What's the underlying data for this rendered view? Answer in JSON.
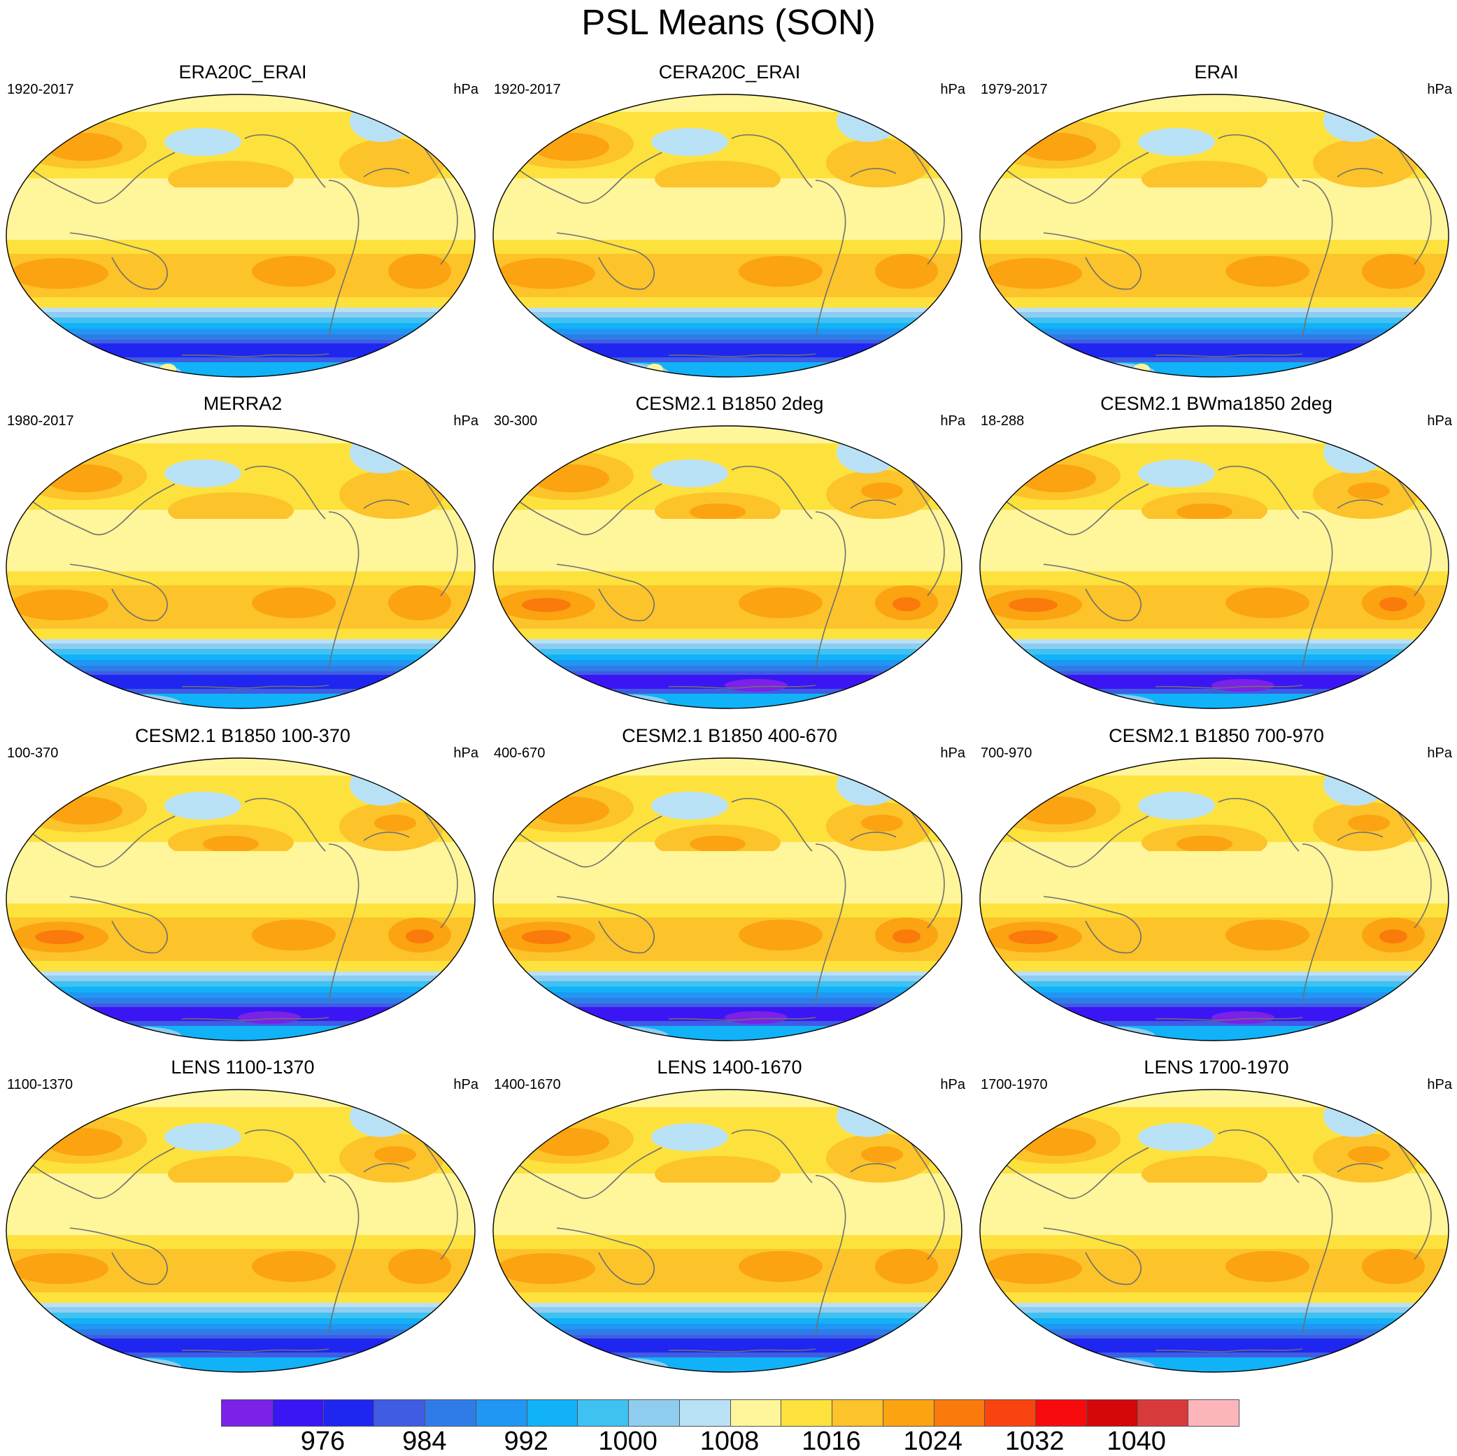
{
  "title": "PSL Means (SON)",
  "units": "hPa",
  "panels": [
    {
      "title": "ERA20C_ERAI",
      "left": "1920-2017",
      "right": "hPa",
      "variant": "obs"
    },
    {
      "title": "CERA20C_ERAI",
      "left": "1920-2017",
      "right": "hPa",
      "variant": "obs"
    },
    {
      "title": "ERAI",
      "left": "1979-2017",
      "right": "hPa",
      "variant": "obs"
    },
    {
      "title": "MERRA2",
      "left": "1980-2017",
      "right": "hPa",
      "variant": "merra"
    },
    {
      "title": "CESM2.1 B1850 2deg",
      "left": "30-300",
      "right": "hPa",
      "variant": "model"
    },
    {
      "title": "CESM2.1 BWma1850 2deg",
      "left": "18-288",
      "right": "hPa",
      "variant": "model"
    },
    {
      "title": "CESM2.1 B1850 100-370",
      "left": "100-370",
      "right": "hPa",
      "variant": "model"
    },
    {
      "title": "CESM2.1 B1850 400-670",
      "left": "400-670",
      "right": "hPa",
      "variant": "model"
    },
    {
      "title": "CESM2.1 B1850 700-970",
      "left": "700-970",
      "right": "hPa",
      "variant": "model"
    },
    {
      "title": "LENS 1100-1370",
      "left": "1100-1370",
      "right": "hPa",
      "variant": "lens"
    },
    {
      "title": "LENS 1400-1670",
      "left": "1400-1670",
      "right": "hPa",
      "variant": "lens"
    },
    {
      "title": "LENS 1700-1970",
      "left": "1700-1970",
      "right": "hPa",
      "variant": "lens"
    }
  ],
  "colorbar": {
    "colors": [
      "#7b21e8",
      "#3b16f5",
      "#1f26f0",
      "#3f5ce3",
      "#2f7ce8",
      "#1f97f3",
      "#11b2f7",
      "#3fc1f2",
      "#8fcdf0",
      "#b9e1f5",
      "#fff59a",
      "#fde13d",
      "#fcc32a",
      "#fba310",
      "#fa7a0c",
      "#f94410",
      "#f80b0c",
      "#d40808",
      "#d83a3c",
      "#fcb6bb"
    ],
    "labels": [
      "976",
      "984",
      "992",
      "1000",
      "1008",
      "1016",
      "1024",
      "1032",
      "1040"
    ]
  }
}
